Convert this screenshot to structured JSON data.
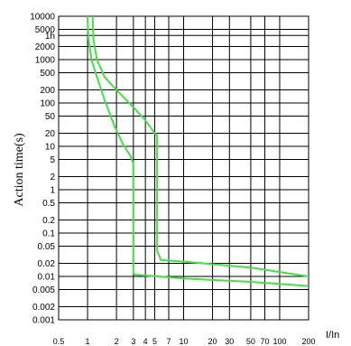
{
  "chart_data": {
    "type": "line",
    "title": "",
    "xlabel": "I/In",
    "ylabel": "Action time(s)",
    "x_scale": "log",
    "y_scale": "log",
    "xlim": [
      0.5,
      200
    ],
    "ylim": [
      0.001,
      10000
    ],
    "grid": true,
    "x_ticks": [
      "0.5",
      "1",
      "2",
      "3",
      "4",
      "5",
      "7",
      "10",
      "20",
      "30",
      "50",
      "70",
      "100",
      "200"
    ],
    "x_tick_values": [
      0.5,
      1,
      2,
      3,
      4,
      5,
      7,
      10,
      20,
      30,
      50,
      70,
      100,
      200
    ],
    "y_ticks": [
      "10000",
      "5000",
      "1h",
      "2000",
      "1000",
      "500",
      "200",
      "100",
      "50",
      "20",
      "10",
      "5",
      "2",
      "1",
      "0.5",
      "0.2",
      "0.1",
      "0.05",
      "0.02",
      "0.01",
      "0.005",
      "0.002",
      "0.001"
    ],
    "y_tick_values": [
      10000,
      5000,
      3600,
      2000,
      1000,
      500,
      200,
      100,
      50,
      20,
      10,
      5,
      2,
      1,
      0.5,
      0.2,
      0.1,
      0.05,
      0.02,
      0.01,
      0.005,
      0.002,
      0.001
    ],
    "color": "#44e044",
    "series": [
      {
        "values": [
          [
            1.0,
            10000
          ],
          [
            1.02,
            3000
          ],
          [
            1.1,
            1000
          ],
          [
            1.25,
            400
          ],
          [
            1.5,
            120
          ],
          [
            1.9,
            30
          ],
          [
            2.3,
            12
          ],
          [
            2.8,
            6
          ],
          [
            3.0,
            4
          ],
          [
            3.0,
            0.05
          ],
          [
            3.0,
            0.012
          ],
          [
            3.1,
            0.011
          ],
          [
            10,
            0.009
          ],
          [
            50,
            0.0075
          ],
          [
            200,
            0.006
          ]
        ]
      },
      {
        "values": [
          [
            1.13,
            10000
          ],
          [
            1.15,
            3000
          ],
          [
            1.25,
            1000
          ],
          [
            1.5,
            400
          ],
          [
            2.0,
            200
          ],
          [
            3.0,
            80
          ],
          [
            4.0,
            40
          ],
          [
            5.0,
            20
          ],
          [
            5.3,
            18
          ],
          [
            5.3,
            2
          ],
          [
            5.3,
            0.1
          ],
          [
            5.3,
            0.04
          ],
          [
            5.8,
            0.024
          ],
          [
            10,
            0.022
          ],
          [
            50,
            0.016
          ],
          [
            200,
            0.01
          ]
        ]
      }
    ]
  }
}
